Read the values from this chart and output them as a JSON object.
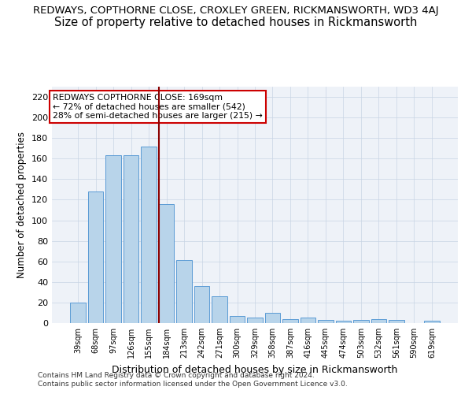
{
  "title1": "REDWAYS, COPTHORNE CLOSE, CROXLEY GREEN, RICKMANSWORTH, WD3 4AJ",
  "title2": "Size of property relative to detached houses in Rickmansworth",
  "xlabel": "Distribution of detached houses by size in Rickmansworth",
  "ylabel": "Number of detached properties",
  "categories": [
    "39sqm",
    "68sqm",
    "97sqm",
    "126sqm",
    "155sqm",
    "184sqm",
    "213sqm",
    "242sqm",
    "271sqm",
    "300sqm",
    "329sqm",
    "358sqm",
    "387sqm",
    "416sqm",
    "445sqm",
    "474sqm",
    "503sqm",
    "532sqm",
    "561sqm",
    "590sqm",
    "619sqm"
  ],
  "values": [
    20,
    128,
    163,
    163,
    172,
    116,
    61,
    36,
    26,
    7,
    5,
    10,
    4,
    5,
    3,
    2,
    3,
    4,
    3,
    0,
    2
  ],
  "bar_color": "#b8d4ea",
  "bar_edge_color": "#5b9bd5",
  "vline_x": 4.58,
  "vline_color": "#8b0000",
  "annotation_line1": "REDWAYS COPTHORNE CLOSE: 169sqm",
  "annotation_line2": "← 72% of detached houses are smaller (542)",
  "annotation_line3": "28% of semi-detached houses are larger (215) →",
  "annotation_box_color": "#ffffff",
  "annotation_box_edge": "#cc0000",
  "ylim": [
    0,
    230
  ],
  "yticks": [
    0,
    20,
    40,
    60,
    80,
    100,
    120,
    140,
    160,
    180,
    200,
    220
  ],
  "footer1": "Contains HM Land Registry data © Crown copyright and database right 2024.",
  "footer2": "Contains public sector information licensed under the Open Government Licence v3.0.",
  "bg_color": "#eef2f8",
  "fig_bg": "#ffffff",
  "title1_fontsize": 9.5,
  "title2_fontsize": 10.5
}
